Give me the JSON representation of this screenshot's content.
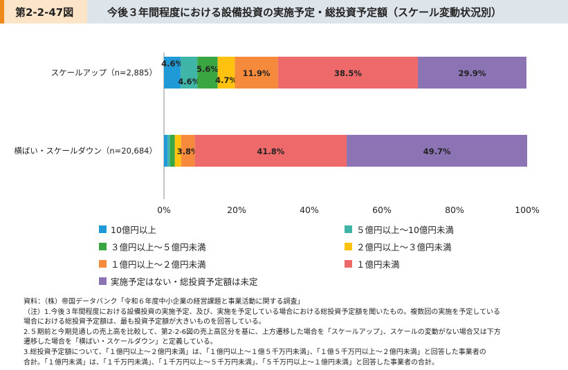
{
  "header": {
    "figure_number": "第2-2-47図",
    "title": "今後３年間程度における設備投資の実施予定・総投資予定額（スケール変動状況別）"
  },
  "colors": [
    "#1f9ad6",
    "#3fb5a8",
    "#3aa642",
    "#ffc20e",
    "#f58a3c",
    "#ee6a6a",
    "#8c74b4"
  ],
  "chart_data": {
    "type": "bar",
    "orientation": "horizontal",
    "stacked": true,
    "categories": [
      "スケールアップ（n=2,885）",
      "横ばい・スケールダウン（n=20,684）"
    ],
    "series": [
      {
        "name": "10億円以上",
        "values": [
          4.6,
          1.0
        ]
      },
      {
        "name": "５億円以上～10億円未満",
        "values": [
          4.6,
          0.7
        ]
      },
      {
        "name": "３億円以上～５億円未満",
        "values": [
          5.6,
          1.3
        ]
      },
      {
        "name": "２億円以上～３億円未満",
        "values": [
          4.7,
          1.7
        ]
      },
      {
        "name": "１億円以上～２億円未満",
        "values": [
          11.9,
          3.8
        ]
      },
      {
        "name": "１億円未満",
        "values": [
          38.5,
          41.8
        ]
      },
      {
        "name": "実施予定はない・総投資予定額は未定",
        "values": [
          29.9,
          49.7
        ]
      }
    ],
    "data_labels": [
      [
        "4.6%",
        "4.6%",
        "5.6%",
        "4.7%",
        "11.9%",
        "38.5%",
        "29.9%"
      ],
      [
        "",
        "",
        "",
        "",
        "3.8%",
        "41.8%",
        "49.7%"
      ]
    ],
    "x_ticks": [
      "0%",
      "20%",
      "40%",
      "60%",
      "80%",
      "100%"
    ],
    "xlim": [
      0,
      100
    ]
  },
  "notes": [
    "資料：（株）帝国データバンク「令和６年度中小企業の経営課題と事業活動に関する調査」",
    "（注）1.今後３年間程度における設備投資の実施予定、及び、実施を予定している場合における総投資予定額を聞いたもの。複数回の実施を予定している",
    "場合における総投資予定額は、最も投資予定額が大きいものを回答している。",
    "2.５期前と今期見通しの売上高を比較して、第2-2-6図の売上高区分を基に、上方遷移した場合を「スケールアップ」、スケールの変動がない場合又は下方",
    "遷移した場合を「横ばい・スケールダウン」と定義している。",
    "3.総投資予定額について、「１億円以上～２億円未満」は、「１億円以上～１億５千万円未満」、「１億５千万円以上～２億円未満」と回答した事業者の",
    "合計。「１億円未満」は、「１千万円未満」、「１千万円以上～５千万円未満」、「５千万円以上～１億円未満」と回答した事業者の合計。"
  ]
}
